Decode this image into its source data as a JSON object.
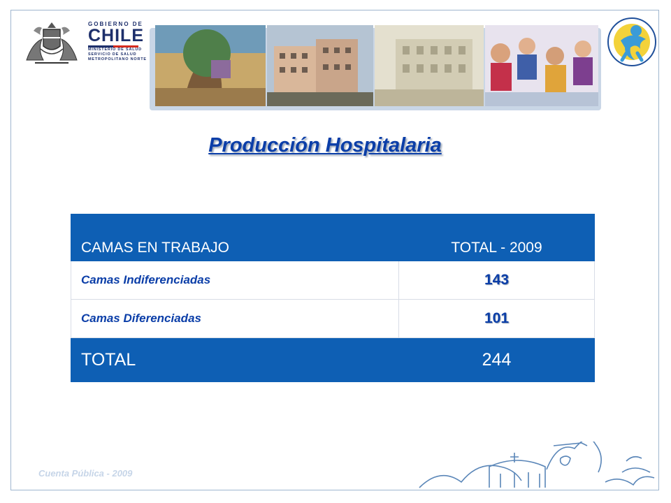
{
  "header": {
    "gobierno_top": "GOBIERNO DE",
    "gobierno_main": "CHILE",
    "gobierno_lines": [
      "MINISTERIO DE SALUD",
      "SERVICIO DE SALUD",
      "METROPOLITANO NORTE"
    ]
  },
  "title": "Producción Hospitalaria",
  "table": {
    "headers": [
      "CAMAS EN TRABAJO",
      "TOTAL - 2009"
    ],
    "rows": [
      {
        "label": "Camas Indiferenciadas",
        "value": "143"
      },
      {
        "label": "Camas Diferenciadas",
        "value": "101"
      }
    ],
    "total": {
      "label": "TOTAL",
      "value": "244"
    }
  },
  "footer": "Cuenta Pública - 2009",
  "colors": {
    "accent": "#0e5fb4",
    "title": "#0b3ea8",
    "frame": "#9fb6cf"
  }
}
